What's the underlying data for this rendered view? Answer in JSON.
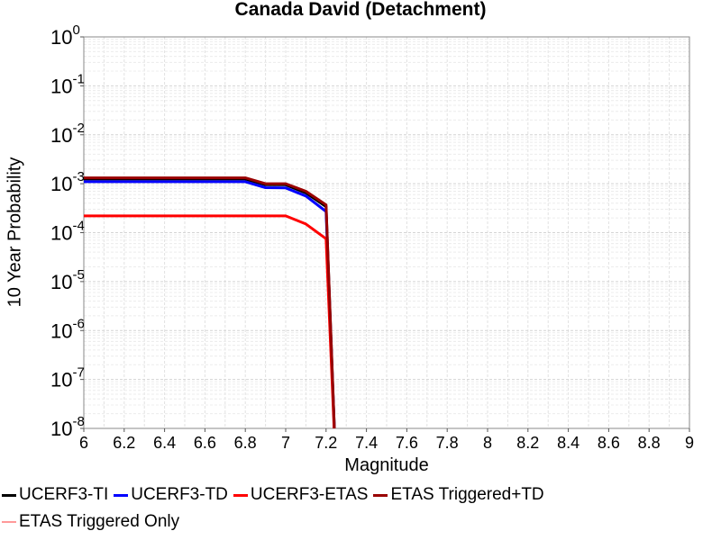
{
  "chart_data": {
    "type": "line",
    "title": "Canada David (Detachment)",
    "xlabel": "Magnitude",
    "ylabel": "10 Year Probability",
    "xlim": [
      6,
      9
    ],
    "ylim": [
      1e-08,
      1
    ],
    "yscale": "log",
    "grid": true,
    "legend": "bottom",
    "x_ticks": [
      "6",
      "6.2",
      "6.4",
      "6.6",
      "6.8",
      "7",
      "7.2",
      "7.4",
      "7.6",
      "7.8",
      "8",
      "8.2",
      "8.4",
      "8.6",
      "8.8",
      "9"
    ],
    "y_ticks": [
      {
        "base": "10",
        "exp": "0"
      },
      {
        "base": "10",
        "exp": "-1"
      },
      {
        "base": "10",
        "exp": "-2"
      },
      {
        "base": "10",
        "exp": "-3"
      },
      {
        "base": "10",
        "exp": "-4"
      },
      {
        "base": "10",
        "exp": "-5"
      },
      {
        "base": "10",
        "exp": "-6"
      },
      {
        "base": "10",
        "exp": "-7"
      },
      {
        "base": "10",
        "exp": "-8"
      }
    ],
    "series": [
      {
        "name": "UCERF3-TI",
        "color": "#000000",
        "width": 3,
        "x": [
          6.0,
          6.8,
          6.9,
          7.0,
          7.1,
          7.2,
          7.25
        ],
        "y": [
          0.00125,
          0.00125,
          0.00095,
          0.00095,
          0.00065,
          0.00034,
          1e-09
        ]
      },
      {
        "name": "UCERF3-TD",
        "color": "#0000ff",
        "width": 3,
        "x": [
          6.0,
          6.8,
          6.9,
          7.0,
          7.1,
          7.2,
          7.25
        ],
        "y": [
          0.0011,
          0.0011,
          0.00083,
          0.00082,
          0.00056,
          0.00027,
          1e-09
        ]
      },
      {
        "name": "UCERF3-ETAS",
        "color": "#ff0000",
        "width": 3,
        "x": [
          6.0,
          6.8,
          7.0,
          7.1,
          7.2,
          7.25
        ],
        "y": [
          0.00022,
          0.00022,
          0.00022,
          0.00015,
          7.5e-05,
          1e-09
        ]
      },
      {
        "name": "ETAS Triggered+TD",
        "color": "#990000",
        "width": 3,
        "x": [
          6.0,
          6.8,
          6.9,
          7.0,
          7.1,
          7.2,
          7.25
        ],
        "y": [
          0.00132,
          0.00132,
          0.001,
          0.001,
          0.0007,
          0.00037,
          1e-09
        ]
      },
      {
        "name": "ETAS Triggered Only",
        "color": "#ff9999",
        "width": 1.5,
        "x": [],
        "y": []
      }
    ]
  }
}
